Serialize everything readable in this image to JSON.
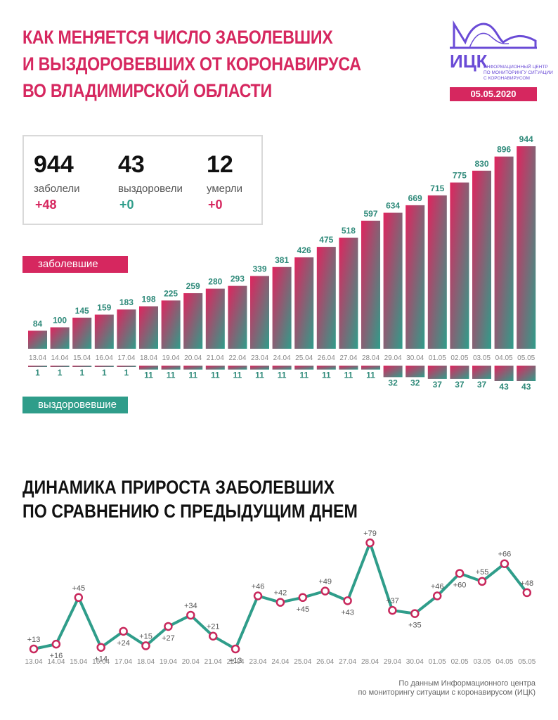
{
  "header": {
    "title_lines": [
      "КАК МЕНЯЕТСЯ ЧИСЛО ЗАБОЛЕВШИХ",
      "И ВЫЗДОРОВЕВШИХ ОТ КОРОНАВИРУСА",
      "ВО ВЛАДИМИРСКОЙ ОБЛАСТИ"
    ]
  },
  "logo": {
    "name": "ИЦК",
    "text_lines": [
      "ИНФОРМАЦИОННЫЙ ЦЕНТР",
      "ПО МОНИТОРИНГУ СИТУАЦИИ",
      "С КОРОНАВИРУСОМ"
    ],
    "date": "05.05.2020",
    "color": "#6a4bd6"
  },
  "stats": [
    {
      "value": "944",
      "label": "заболели",
      "delta": "+48",
      "color": "#d6275f"
    },
    {
      "value": "43",
      "label": "выздоровели",
      "delta": "+0",
      "color": "#2f9d8a"
    },
    {
      "value": "12",
      "label": "умерли",
      "delta": "+0",
      "color": "#d6275f"
    }
  ],
  "tags": {
    "sick": "заболевшие",
    "recovered": "выздоровевшие"
  },
  "subtitle_lines": [
    "ДИНАМИКА ПРИРОСТА ЗАБОЛЕВШИХ",
    "ПО СРАВНЕНИЮ С ПРЕДЫДУЩИМ ДНЕМ"
  ],
  "source_lines": [
    "По данным Информационного центра",
    "по мониторингу ситуации с коронавирусом (ИЦК)"
  ],
  "colors": {
    "accent": "#d6275f",
    "teal": "#2f9d8a",
    "text_dark": "#111111",
    "text_gray": "#777777"
  },
  "chart_data": [
    {
      "type": "bar",
      "categories": [
        "13.04",
        "14.04",
        "15.04",
        "16.04",
        "17.04",
        "18.04",
        "19.04",
        "20.04",
        "21.04",
        "22.04",
        "23.04",
        "24.04",
        "25.04",
        "26.04",
        "27.04",
        "28.04",
        "29.04",
        "30.04",
        "01.05",
        "02.05",
        "03.05",
        "04.05",
        "05.05"
      ],
      "series": [
        {
          "name": "заболевшие",
          "values": [
            84,
            100,
            145,
            159,
            183,
            198,
            225,
            259,
            280,
            293,
            339,
            381,
            426,
            475,
            518,
            597,
            634,
            669,
            715,
            775,
            830,
            896,
            944
          ]
        },
        {
          "name": "выздоровевшие",
          "values": [
            1,
            1,
            1,
            1,
            1,
            11,
            11,
            11,
            11,
            11,
            11,
            11,
            11,
            11,
            11,
            11,
            32,
            32,
            37,
            37,
            37,
            43,
            43
          ]
        }
      ]
    },
    {
      "type": "line",
      "x": [
        "13.04",
        "14.04",
        "15.04",
        "16.04",
        "17.04",
        "18.04",
        "19.04",
        "20.04",
        "21.04",
        "22.04",
        "23.04",
        "24.04",
        "25.04",
        "26.04",
        "27.04",
        "28.04",
        "29.04",
        "30.04",
        "01.05",
        "02.05",
        "03.05",
        "04.05",
        "05.05"
      ],
      "values": [
        13,
        16,
        45,
        14,
        24,
        15,
        27,
        34,
        21,
        13,
        46,
        42,
        45,
        49,
        43,
        79,
        37,
        35,
        46,
        60,
        55,
        66,
        48
      ],
      "labels": [
        "+13",
        "+16",
        "+45",
        "+14",
        "+24",
        "+15",
        "+27",
        "+34",
        "+21",
        "+13",
        "+46",
        "+42",
        "+45",
        "+49",
        "+43",
        "+79",
        "+37",
        "+35",
        "+46",
        "+60",
        "+55",
        "+66",
        "+48"
      ],
      "label_pos": [
        "above",
        "below",
        "above",
        "below",
        "below",
        "above",
        "below",
        "above",
        "above",
        "below",
        "above",
        "above",
        "below",
        "above",
        "below",
        "above",
        "above",
        "below",
        "above",
        "below",
        "above",
        "above",
        "above"
      ]
    }
  ]
}
